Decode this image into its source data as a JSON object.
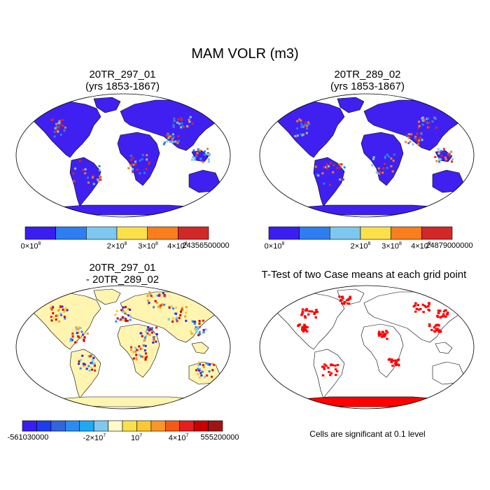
{
  "main_title": "MAM VOLR (m3)",
  "panels": [
    {
      "id": "case1",
      "title_line1": "20TR_297_01",
      "title_line2": "(yrs 1853-1867)",
      "colorbar": {
        "colors": [
          "#3a1ef0",
          "#2d7ef0",
          "#7dc8f0",
          "#fbe04a",
          "#fa7d1e",
          "#d22828"
        ],
        "ticks": [
          {
            "base": "0×10",
            "exp": "8"
          },
          {
            "base": "2×10",
            "exp": "8"
          },
          {
            "base": "3×10",
            "exp": "8"
          },
          {
            "base": "4×10",
            "exp": "8"
          },
          {
            "base": "24356500000",
            "exp": ""
          }
        ]
      }
    },
    {
      "id": "case2",
      "title_line1": "20TR_289_02",
      "title_line2": "(yrs 1853-1867)",
      "colorbar": {
        "colors": [
          "#3a1ef0",
          "#2d7ef0",
          "#7dc8f0",
          "#fbe04a",
          "#fa7d1e",
          "#d22828"
        ],
        "ticks": [
          {
            "base": "0×10",
            "exp": "8"
          },
          {
            "base": "2×10",
            "exp": "8"
          },
          {
            "base": "3×10",
            "exp": "8"
          },
          {
            "base": "4×10",
            "exp": "8"
          },
          {
            "base": "24879000000",
            "exp": ""
          }
        ]
      }
    },
    {
      "id": "diff",
      "title_line1": "20TR_297_01",
      "title_line2": "- 20TR_289_02",
      "colorbar": {
        "colors": [
          "#3a1ef0",
          "#1e3cf0",
          "#3264dc",
          "#2a8cf0",
          "#1eaaf5",
          "#7dc8f0",
          "#fffac8",
          "#fbe04a",
          "#fbc832",
          "#fa9628",
          "#f55a14",
          "#e61e1e",
          "#c80000",
          "#a01414"
        ],
        "ticks": [
          {
            "base": "-561030000",
            "exp": ""
          },
          {
            "base": "-2×10",
            "exp": "7"
          },
          {
            "base": "10",
            "exp": "7"
          },
          {
            "base": "4×10",
            "exp": "7"
          },
          {
            "base": "555200000",
            "exp": ""
          }
        ]
      }
    },
    {
      "id": "ttest",
      "title_line1": "T-Test of two Case means at each grid point",
      "title_line2": ""
    }
  ],
  "note": "Cells are significant at 0.1 level",
  "colors": {
    "land_case": "#4020f0",
    "high_case": "#d22828",
    "diff_land": "#fff5b0",
    "diff_neg": "#7dc8f0",
    "signif": "#ff0000",
    "outline": "#000000"
  }
}
